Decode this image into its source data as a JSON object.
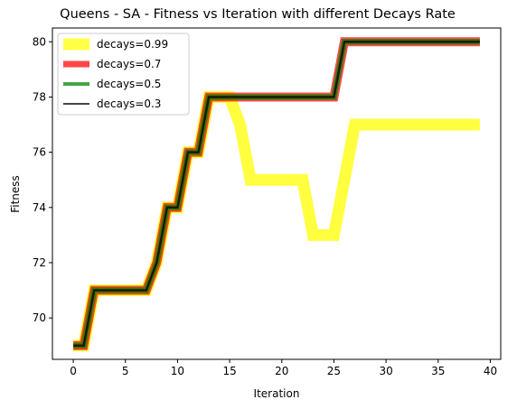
{
  "chart_data": {
    "type": "line",
    "title": "Queens - SA - Fitness vs Iteration with different Decays Rate",
    "xlabel": "Iteration",
    "ylabel": "Fitness",
    "xlim": [
      -2,
      41
    ],
    "ylim": [
      68.5,
      80.5
    ],
    "xticks": [
      0,
      5,
      10,
      15,
      20,
      25,
      30,
      35,
      40
    ],
    "yticks": [
      70,
      72,
      74,
      76,
      78,
      80
    ],
    "grid": false,
    "legend_position": "top-left",
    "x": [
      0,
      1,
      2,
      3,
      4,
      5,
      6,
      7,
      8,
      9,
      10,
      11,
      12,
      13,
      14,
      15,
      16,
      17,
      18,
      19,
      20,
      21,
      22,
      23,
      24,
      25,
      26,
      27,
      28,
      29,
      30,
      31,
      32,
      33,
      34,
      35,
      36,
      37,
      38,
      39
    ],
    "series": [
      {
        "name": "decays=0.99",
        "color": "#ffff00",
        "values": [
          69,
          69,
          71,
          71,
          71,
          71,
          71,
          71,
          72,
          74,
          74,
          76,
          76,
          78,
          78,
          78,
          77,
          75,
          75,
          75,
          75,
          75,
          75,
          73,
          73,
          73,
          75,
          77,
          77,
          77,
          77,
          77,
          77,
          77,
          77,
          77,
          77,
          77,
          77,
          77
        ]
      },
      {
        "name": "decays=0.7",
        "color": "#ff0000",
        "values": [
          69,
          69,
          71,
          71,
          71,
          71,
          71,
          71,
          72,
          74,
          74,
          76,
          76,
          78,
          78,
          78,
          78,
          78,
          78,
          78,
          78,
          78,
          78,
          78,
          78,
          78,
          80,
          80,
          80,
          80,
          80,
          80,
          80,
          80,
          80,
          80,
          80,
          80,
          80,
          80
        ]
      },
      {
        "name": "decays=0.5",
        "color": "#008000",
        "values": [
          69,
          69,
          71,
          71,
          71,
          71,
          71,
          71,
          72,
          74,
          74,
          76,
          76,
          78,
          78,
          78,
          78,
          78,
          78,
          78,
          78,
          78,
          78,
          78,
          78,
          78,
          80,
          80,
          80,
          80,
          80,
          80,
          80,
          80,
          80,
          80,
          80,
          80,
          80,
          80
        ]
      },
      {
        "name": "decays=0.3",
        "color": "#000000",
        "values": [
          69,
          69,
          71,
          71,
          71,
          71,
          71,
          71,
          72,
          74,
          74,
          76,
          76,
          78,
          78,
          78,
          78,
          78,
          78,
          78,
          78,
          78,
          78,
          78,
          78,
          78,
          80,
          80,
          80,
          80,
          80,
          80,
          80,
          80,
          80,
          80,
          80,
          80,
          80,
          80
        ]
      }
    ]
  }
}
